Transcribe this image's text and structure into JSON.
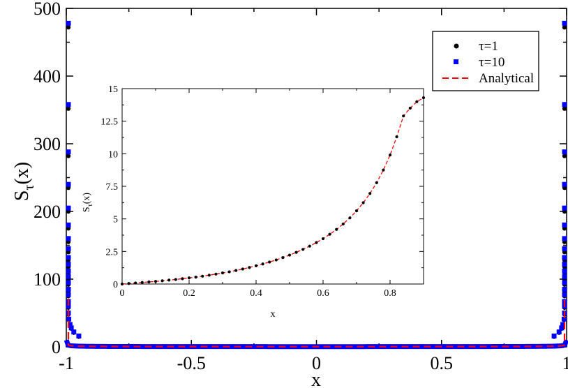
{
  "chart_data": [
    {
      "type": "scatter",
      "role": "main",
      "xlabel": "x",
      "ylabel_base": "S",
      "ylabel_sub": "τ",
      "ylabel_arg": "(x)",
      "xlim": [
        -1,
        1
      ],
      "ylim": [
        0,
        500
      ],
      "xticks": [
        "-1",
        "-0.5",
        "0",
        "0.5",
        "1"
      ],
      "xtick_values": [
        -1,
        -0.5,
        0,
        0.5,
        1
      ],
      "yticks": [
        "0",
        "100",
        "200",
        "300",
        "400",
        "500"
      ],
      "ytick_values": [
        0,
        100,
        200,
        300,
        400,
        500
      ],
      "grid": false,
      "legend_position": "top-right",
      "series": [
        {
          "name": "τ=1",
          "marker": "circle",
          "color": "#000000",
          "x": [
            -0.99995,
            -0.9999,
            -0.99985,
            -0.9998,
            -0.9997,
            -0.9996,
            -0.99945,
            -0.9993,
            -0.9991,
            -0.9989,
            -0.9987,
            -0.9984,
            -0.998,
            -0.9975,
            -0.997,
            -0.996,
            -0.995,
            -0.993,
            -0.99,
            -0.985,
            -0.98,
            -0.97,
            -0.95,
            0.95,
            0.97,
            0.98,
            0.985,
            0.99,
            0.993,
            0.995,
            0.996,
            0.997,
            0.9975,
            0.998,
            0.9984,
            0.9987,
            0.9989,
            0.9991,
            0.9993,
            0.99945,
            0.9996,
            0.9997,
            0.9998,
            0.99985,
            0.9999,
            0.99995
          ],
          "y": [
            472,
            352,
            282,
            235,
            200,
            175,
            155,
            140,
            128,
            118,
            110,
            100,
            92,
            82,
            75,
            65,
            58,
            48,
            40,
            32,
            27,
            21,
            15,
            15,
            21,
            27,
            32,
            40,
            48,
            58,
            65,
            75,
            82,
            92,
            100,
            110,
            118,
            128,
            140,
            155,
            175,
            200,
            235,
            282,
            352,
            472
          ]
        },
        {
          "name": "τ=10",
          "marker": "square",
          "color": "#0000ff",
          "x": [
            -0.99995,
            -0.9999,
            -0.99985,
            -0.9998,
            -0.9997,
            -0.9996,
            -0.99945,
            -0.9993,
            -0.9991,
            -0.9989,
            -0.9987,
            -0.9984,
            -0.998,
            -0.9975,
            -0.997,
            -0.996,
            -0.995,
            -0.993,
            -0.99,
            -0.985,
            -0.98,
            -0.97,
            -0.95,
            0.95,
            0.97,
            0.98,
            0.985,
            0.99,
            0.993,
            0.995,
            0.996,
            0.997,
            0.9975,
            0.998,
            0.9984,
            0.9987,
            0.9989,
            0.9991,
            0.9993,
            0.99945,
            0.9996,
            0.9997,
            0.9998,
            0.99985,
            0.9999,
            0.99995
          ],
          "y": [
            478,
            358,
            288,
            240,
            205,
            180,
            160,
            145,
            132,
            122,
            112,
            104,
            95,
            85,
            77,
            67,
            60,
            50,
            41,
            33,
            28,
            22,
            16,
            16,
            22,
            28,
            33,
            41,
            50,
            60,
            67,
            77,
            85,
            95,
            104,
            112,
            122,
            132,
            145,
            160,
            180,
            205,
            240,
            288,
            358,
            478
          ]
        },
        {
          "name": "Analytical",
          "line": "dashed",
          "color": "#ff0000",
          "formula": "1/(pi*sqrt(1-x^2))"
        }
      ]
    },
    {
      "type": "scatter",
      "role": "inset",
      "xlabel": "x",
      "ylabel_base": "S",
      "ylabel_sub": "τ",
      "ylabel_arg": "(x)",
      "xlim": [
        0,
        0.9
      ],
      "ylim": [
        0,
        15
      ],
      "xticks": [
        "0",
        "0.2",
        "0.4",
        "0.6",
        "0.8"
      ],
      "xtick_values": [
        0,
        0.2,
        0.4,
        0.6,
        0.8
      ],
      "yticks": [
        "0",
        "2.5",
        "5",
        "7.5",
        "10",
        "12.5",
        "15"
      ],
      "ytick_values": [
        0,
        2.5,
        5,
        7.5,
        10,
        12.5,
        15
      ],
      "grid": false,
      "series": [
        {
          "name": "τ=1",
          "marker": "circle",
          "color": "#000000",
          "x": [
            0,
            0.02,
            0.04,
            0.06,
            0.08,
            0.1,
            0.12,
            0.14,
            0.16,
            0.18,
            0.2,
            0.22,
            0.24,
            0.26,
            0.28,
            0.3,
            0.32,
            0.34,
            0.36,
            0.38,
            0.4,
            0.42,
            0.44,
            0.46,
            0.48,
            0.5,
            0.52,
            0.54,
            0.56,
            0.58,
            0.6,
            0.62,
            0.64,
            0.66,
            0.68,
            0.7,
            0.72,
            0.74,
            0.76,
            0.78,
            0.8,
            0.82,
            0.84,
            0.86,
            0.88,
            0.9
          ],
          "y": [
            0,
            0.04,
            0.08,
            0.12,
            0.16,
            0.2,
            0.25,
            0.3,
            0.35,
            0.41,
            0.47,
            0.53,
            0.6,
            0.68,
            0.76,
            0.85,
            0.94,
            1.04,
            1.15,
            1.27,
            1.4,
            1.54,
            1.69,
            1.85,
            2.03,
            2.22,
            2.43,
            2.66,
            2.91,
            3.18,
            3.48,
            3.82,
            4.19,
            4.61,
            5.08,
            5.62,
            6.24,
            6.95,
            7.78,
            8.75,
            9.9,
            11.3,
            12.9,
            13.5,
            14.0,
            14.3
          ]
        },
        {
          "name": "Analytical",
          "line": "dashed",
          "color": "#ff0000"
        }
      ]
    }
  ]
}
